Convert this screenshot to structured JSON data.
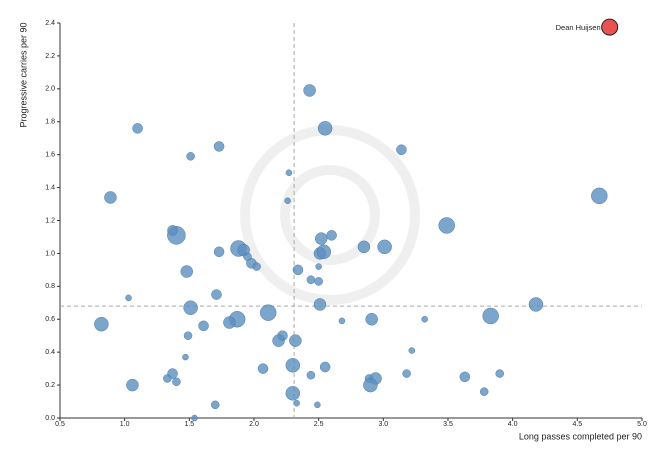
{
  "chart_data": {
    "type": "scatter",
    "x_label": "Long passes completed per 90",
    "y_label": "Progressive carries per 90",
    "xlim": [
      0.5,
      5.0
    ],
    "ylim": [
      0.0,
      2.4
    ],
    "xticks": [
      0.5,
      {
        "value": 1.0,
        "label": "1.0"
      },
      1.5,
      {
        "value": 2.0,
        "label": "2.0"
      },
      2.5,
      {
        "value": 3.0,
        "label": "3.0"
      },
      3.5,
      {
        "value": 4.0,
        "label": "4.0"
      },
      4.5,
      {
        "value": 5.0,
        "label": "5.0"
      }
    ],
    "yticks": [
      {
        "value": 0.0,
        "label": "0.0"
      },
      0.2,
      0.4,
      0.6,
      0.8,
      {
        "value": 1.0,
        "label": "1.0"
      },
      1.2,
      1.4,
      1.6,
      1.8,
      {
        "value": 2.0,
        "label": "2.0"
      },
      2.2,
      2.4
    ],
    "ref_x": 2.31,
    "ref_y": 0.68,
    "color": "#5b8fbf",
    "x": [
      2.43,
      1.1,
      2.55,
      1.73,
      1.51,
      3.14,
      4.67,
      0.89,
      2.27,
      2.26,
      3.49,
      1.4,
      1.37,
      2.6,
      2.52,
      2.85,
      3.01,
      1.73,
      1.88,
      1.92,
      1.95,
      1.98,
      2.02,
      2.51,
      2.54,
      2.5,
      1.48,
      2.34,
      2.44,
      2.5,
      1.71,
      1.03,
      1.51,
      2.51,
      4.18,
      0.82,
      1.87,
      1.81,
      1.61,
      2.11,
      2.68,
      2.91,
      3.32,
      3.83,
      1.49,
      2.22,
      2.19,
      2.32,
      3.22,
      1.47,
      2.3,
      2.07,
      2.55,
      1.37,
      1.33,
      1.4,
      1.06,
      2.44,
      3.18,
      3.63,
      3.9,
      2.89,
      2.94,
      2.9,
      3.78,
      2.3,
      2.33,
      1.7,
      2.49,
      1.54
    ],
    "y": [
      1.99,
      1.76,
      1.76,
      1.65,
      1.59,
      1.63,
      1.35,
      1.34,
      1.49,
      1.32,
      1.17,
      1.11,
      1.14,
      1.11,
      1.09,
      1.04,
      1.04,
      1.01,
      1.03,
      1.02,
      0.98,
      0.94,
      0.92,
      1.0,
      1.01,
      0.92,
      0.89,
      0.9,
      0.84,
      0.83,
      0.75,
      0.73,
      0.67,
      0.69,
      0.69,
      0.57,
      0.6,
      0.58,
      0.56,
      0.64,
      0.59,
      0.6,
      0.6,
      0.62,
      0.5,
      0.5,
      0.47,
      0.47,
      0.41,
      0.37,
      0.32,
      0.3,
      0.31,
      0.27,
      0.24,
      0.22,
      0.2,
      0.26,
      0.27,
      0.25,
      0.27,
      0.24,
      0.24,
      0.2,
      0.16,
      0.15,
      0.09,
      0.08,
      0.08,
      0.0
    ],
    "sizes": [
      6,
      5,
      7,
      5,
      4,
      5,
      8,
      6,
      3,
      3,
      8,
      9,
      5,
      5,
      6,
      6,
      7,
      5,
      8,
      6,
      4,
      5,
      4,
      6,
      7,
      3,
      6,
      5,
      4,
      4,
      5,
      3,
      7,
      6,
      7,
      7,
      8,
      6,
      5,
      8,
      3,
      6,
      3,
      8,
      4,
      5,
      6,
      6,
      3,
      3,
      7,
      5,
      5,
      5,
      4,
      4,
      6,
      4,
      4,
      5,
      4,
      4,
      6,
      7,
      4,
      7,
      3,
      4,
      3,
      3
    ],
    "highlight": {
      "label": "Dean Huijsen",
      "x": 4.75,
      "y": 2.375,
      "size": 8,
      "color": "#e8534f"
    }
  }
}
